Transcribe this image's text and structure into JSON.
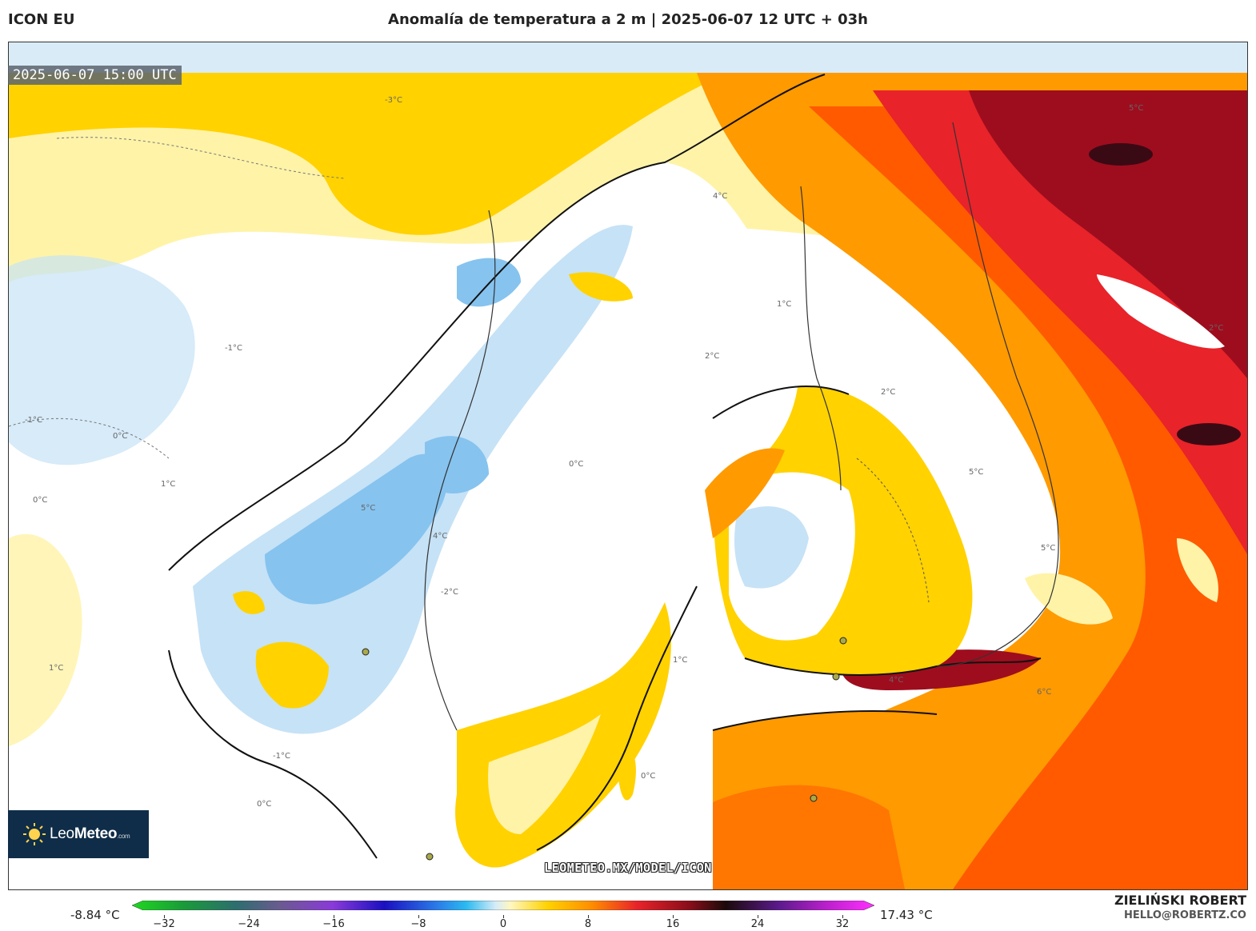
{
  "header": {
    "model": "ICON EU",
    "title": "Anomalía de temperatura a 2 m | 2025-06-07 12 UTC + 03h"
  },
  "map": {
    "valid_time": "2025-06-07 15:00 UTC",
    "watermark": "LEOMETEO.MX/MODEL/ICON",
    "contour_labels": [
      "-3°C",
      "-2°C",
      "-1°C",
      "0°C",
      "1°C",
      "2°C",
      "4°C",
      "5°C",
      "6°C"
    ],
    "colors": {
      "sea_cool": "#d9ebf7",
      "neutral": "#ffffff",
      "cold_1": "#c6e2f6",
      "cold_2": "#86c3ef",
      "warm_1": "#fff3a8",
      "warm_2": "#ffd200",
      "warm_3": "#ff9a00",
      "warm_4": "#ff5a00",
      "hot_1": "#e8232a",
      "hot_2": "#9e0d1e",
      "hot_3": "#3a0a14"
    }
  },
  "logo": {
    "brand_light": "Leo",
    "brand_bold": "Meteo",
    "suffix": ".com"
  },
  "colorbar": {
    "min_label": "-8.84 °C",
    "max_label": "17.43 °C",
    "ticks": [
      "−32",
      "−24",
      "−16",
      "−8",
      "0",
      "8",
      "16",
      "24",
      "32"
    ],
    "range": [
      -32,
      32
    ]
  },
  "credit": {
    "author": "ZIELIŃSKI ROBERT",
    "email": "HELLO@ROBERTZ.CO"
  }
}
